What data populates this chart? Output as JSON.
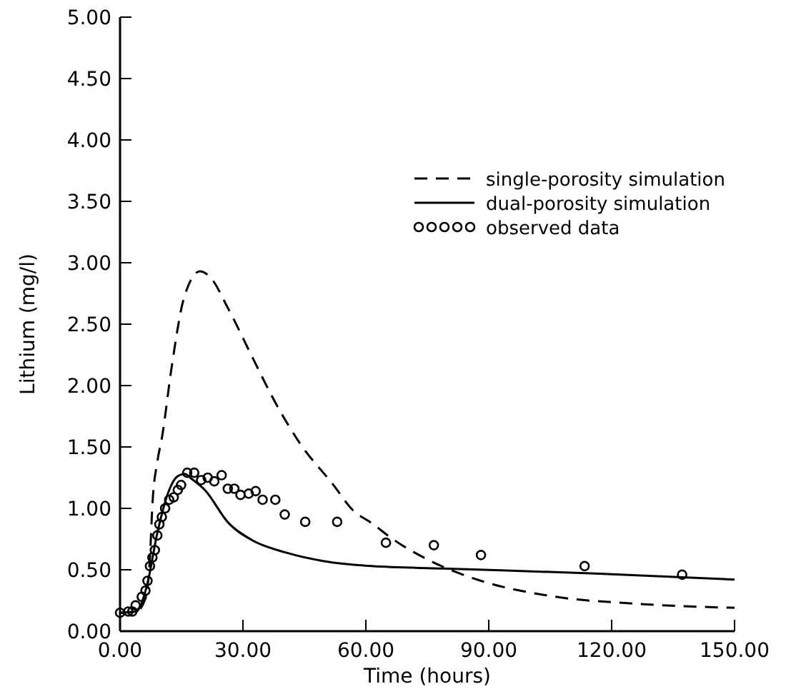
{
  "chart_data": {
    "type": "line",
    "xlabel": "Time (hours)",
    "ylabel": "Lithium (mg/l)",
    "xlim": [
      0,
      150
    ],
    "ylim": [
      0,
      5
    ],
    "xticks": [
      {
        "value": 0,
        "label": "0.00"
      },
      {
        "value": 30,
        "label": "30.00"
      },
      {
        "value": 60,
        "label": "60.00"
      },
      {
        "value": 90,
        "label": "90.00"
      },
      {
        "value": 120,
        "label": "120.00"
      },
      {
        "value": 150,
        "label": "150.00"
      }
    ],
    "yticks": [
      {
        "value": 0,
        "label": "0.00"
      },
      {
        "value": 0.5,
        "label": "0.50"
      },
      {
        "value": 1,
        "label": "1.00"
      },
      {
        "value": 1.5,
        "label": "1.50"
      },
      {
        "value": 2,
        "label": "2.00"
      },
      {
        "value": 2.5,
        "label": "2.50"
      },
      {
        "value": 3,
        "label": "3.00"
      },
      {
        "value": 3.5,
        "label": "3.50"
      },
      {
        "value": 4,
        "label": "4.00"
      },
      {
        "value": 4.5,
        "label": "4.50"
      },
      {
        "value": 5,
        "label": "5.00"
      }
    ],
    "grid": false,
    "legend": "top right",
    "series": [
      {
        "name": "single-porosity simulation",
        "line_style": "dashed",
        "color": "#000000",
        "x": [
          0,
          4,
          6,
          7.3,
          7.9,
          9.1,
          10.2,
          12.6,
          15.5,
          19.5,
          21.8,
          26.5,
          32.3,
          38.1,
          43.9,
          52.1,
          56.7,
          61.4,
          67,
          75.3,
          88.1,
          104.4,
          127.7,
          150
        ],
        "values": [
          0.15,
          0.16,
          0.25,
          0.6,
          1.03,
          1.38,
          1.57,
          2.15,
          2.7,
          2.93,
          2.89,
          2.62,
          2.23,
          1.85,
          1.53,
          1.19,
          0.99,
          0.88,
          0.74,
          0.58,
          0.41,
          0.29,
          0.22,
          0.19
        ]
      },
      {
        "name": "dual-porosity simulation",
        "line_style": "solid",
        "color": "#000000",
        "x": [
          0,
          4,
          5.5,
          6.7,
          9.1,
          12,
          14,
          15.8,
          17.5,
          20.7,
          26.5,
          32.3,
          40.5,
          49.8,
          61.4,
          78.8,
          116,
          150
        ],
        "values": [
          0.15,
          0.16,
          0.25,
          0.39,
          0.8,
          1.15,
          1.26,
          1.28,
          1.24,
          1.15,
          0.88,
          0.74,
          0.64,
          0.57,
          0.53,
          0.51,
          0.47,
          0.42
        ]
      },
      {
        "name": "observed data",
        "type": "scatter",
        "marker": "circle",
        "color": "#000000",
        "x": [
          0,
          2,
          3,
          3.8,
          5.3,
          6.2,
          6.7,
          7.3,
          7.9,
          8.5,
          9.1,
          9.6,
          10.2,
          11,
          12,
          13.1,
          14.1,
          14.9,
          16.4,
          18.1,
          19.8,
          21.4,
          23,
          24.8,
          26.3,
          27.9,
          29.4,
          31.4,
          33.1,
          34.8,
          37.9,
          40.2,
          45.2,
          53,
          64.9,
          76.6,
          88.1,
          113.4,
          137.2
        ],
        "values": [
          0.15,
          0.16,
          0.16,
          0.21,
          0.28,
          0.33,
          0.41,
          0.53,
          0.6,
          0.66,
          0.78,
          0.87,
          0.93,
          1,
          1.07,
          1.09,
          1.15,
          1.19,
          1.29,
          1.29,
          1.23,
          1.25,
          1.22,
          1.27,
          1.16,
          1.16,
          1.11,
          1.12,
          1.14,
          1.07,
          1.07,
          0.95,
          0.89,
          0.89,
          0.72,
          0.7,
          0.62,
          0.53,
          0.46
        ]
      }
    ]
  }
}
